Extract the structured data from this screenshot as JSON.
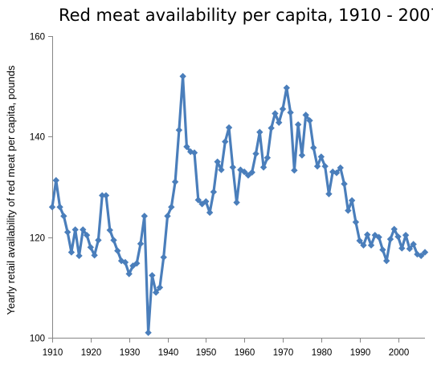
{
  "chart_data": {
    "type": "line",
    "title": "Red meat availability per capita, 1910 - 2007",
    "xlabel": "",
    "ylabel": "Yearly retail availability of red meat per capita, pounds",
    "xlim": [
      1910,
      2007
    ],
    "ylim": [
      100,
      160
    ],
    "x_ticks": [
      1910,
      1920,
      1930,
      1940,
      1950,
      1960,
      1970,
      1980,
      1990,
      2000
    ],
    "y_ticks": [
      100,
      120,
      140,
      160
    ],
    "grid": false,
    "legend": "none",
    "color": "#4a7ebb",
    "marker": "diamond",
    "series": [
      {
        "x": [
          1910,
          1911,
          1912,
          1913,
          1914,
          1915,
          1916,
          1917,
          1918,
          1919,
          1920,
          1921,
          1922,
          1923,
          1924,
          1925,
          1926,
          1927,
          1928,
          1929,
          1930,
          1931,
          1932,
          1933,
          1934,
          1935,
          1936,
          1937,
          1938,
          1939,
          1940,
          1941,
          1942,
          1943,
          1944,
          1945,
          1946,
          1947,
          1948,
          1949,
          1950,
          1951,
          1952,
          1953,
          1954,
          1955,
          1956,
          1957,
          1958,
          1959,
          1960,
          1961,
          1962,
          1963,
          1964,
          1965,
          1966,
          1967,
          1968,
          1969,
          1970,
          1971,
          1972,
          1973,
          1974,
          1975,
          1976,
          1977,
          1978,
          1979,
          1980,
          1981,
          1982,
          1983,
          1984,
          1985,
          1986,
          1987,
          1988,
          1989,
          1990,
          1991,
          1992,
          1993,
          1994,
          1995,
          1996,
          1997,
          1998,
          1999,
          2000,
          2001,
          2002,
          2003,
          2004,
          2005,
          2006,
          2007
        ],
        "values": [
          126,
          131.3,
          126,
          124.2,
          121,
          117,
          121.5,
          116.3,
          121.5,
          120.4,
          118,
          116.4,
          119.4,
          128.3,
          128.3,
          121.4,
          119.4,
          117.3,
          115.3,
          115,
          112.7,
          114.3,
          114.8,
          118.7,
          124.2,
          101,
          112.4,
          109,
          110,
          116,
          124.2,
          126,
          131,
          141.3,
          152,
          138,
          137,
          136.8,
          127.4,
          126.6,
          127.1,
          124.9,
          129,
          135,
          133.4,
          139,
          141.8,
          133.9,
          126.9,
          133.4,
          133,
          132.3,
          132.9,
          136.6,
          140.9,
          133.9,
          135.8,
          141.7,
          144.6,
          142.8,
          145.5,
          149.7,
          144.8,
          133.3,
          142.4,
          136.3,
          144.3,
          143.2,
          137.8,
          134.1,
          136,
          134.1,
          128.6,
          133,
          132.8,
          133.8,
          130.6,
          125.3,
          127.3,
          123,
          119.3,
          118.4,
          120.5,
          118.4,
          120.4,
          120,
          117.5,
          115.3,
          119.6,
          121.6,
          120.1,
          117.8,
          120.4,
          117.7,
          118.6,
          116.6,
          116.3,
          117
        ]
      }
    ]
  }
}
